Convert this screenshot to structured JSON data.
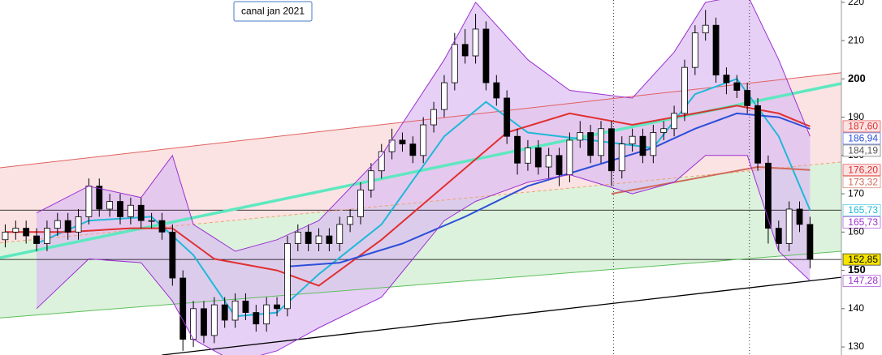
{
  "chart_data": {
    "type": "candlestick",
    "annotation": "canal jan 2021",
    "xlim": [
      -0.5,
      80
    ],
    "ylim": [
      127.9,
      220.6
    ],
    "yticks": [
      130,
      140,
      150,
      160,
      170,
      180,
      190,
      200,
      210,
      220
    ],
    "bold_ticks": [
      150,
      200
    ],
    "up_color": "#ffffff",
    "down_color": "#000000",
    "open": [
      158,
      160,
      161,
      159,
      157,
      161,
      163,
      160,
      164,
      172,
      166,
      168,
      164,
      167,
      163,
      163,
      160,
      148,
      132,
      140,
      133,
      141,
      137,
      142,
      139,
      136,
      141,
      140,
      157,
      160,
      157,
      159,
      157,
      162,
      164,
      171,
      176,
      181,
      184,
      183,
      180,
      188,
      192,
      199,
      209,
      206,
      213,
      199,
      195,
      185,
      178,
      182,
      177,
      180,
      175,
      184,
      186,
      180,
      187,
      176,
      183,
      185,
      180,
      186,
      187,
      191,
      203,
      212,
      214,
      201,
      199,
      197,
      193,
      178,
      161,
      157,
      166,
      162
    ],
    "high": [
      162,
      163,
      163,
      161,
      163,
      165,
      165,
      166,
      174,
      174,
      170,
      170,
      169,
      169,
      165,
      165,
      162,
      150,
      142,
      142,
      143,
      143,
      144,
      144,
      141,
      143,
      143,
      159,
      162,
      162,
      161,
      161,
      164,
      166,
      173,
      178,
      183,
      187,
      186,
      185,
      190,
      194,
      201,
      212,
      213,
      217,
      215,
      201,
      197,
      187,
      184,
      184,
      182,
      182,
      186,
      189,
      188,
      189,
      189,
      185,
      187,
      187,
      188,
      189,
      193,
      205,
      214,
      218,
      216,
      203,
      201,
      199,
      195,
      180,
      163,
      168,
      168,
      164
    ],
    "low": [
      156,
      158,
      157,
      155,
      155,
      159,
      158,
      158,
      162,
      164,
      164,
      162,
      162,
      161,
      161,
      158,
      146,
      129,
      130,
      131,
      131,
      135,
      135,
      137,
      134,
      134,
      138,
      138,
      155,
      155,
      155,
      155,
      155,
      160,
      162,
      169,
      174,
      179,
      181,
      178,
      178,
      186,
      190,
      197,
      204,
      204,
      197,
      193,
      183,
      175,
      176,
      175,
      174,
      172,
      173,
      182,
      178,
      178,
      172,
      174,
      181,
      178,
      178,
      184,
      185,
      189,
      201,
      210,
      199,
      196,
      195,
      191,
      176,
      157,
      155,
      155,
      160,
      150.5
    ],
    "close": [
      160,
      161,
      159,
      157,
      161,
      163,
      160,
      164,
      172,
      166,
      168,
      164,
      167,
      163,
      163,
      160,
      148,
      132,
      140,
      133,
      141,
      137,
      142,
      139,
      136,
      141,
      140,
      157,
      160,
      157,
      159,
      157,
      162,
      164,
      171,
      176,
      181,
      184,
      183,
      180,
      188,
      192,
      199,
      209,
      206,
      213,
      199,
      195,
      185,
      178,
      182,
      177,
      180,
      175,
      184,
      186,
      180,
      187,
      176,
      183,
      185,
      180,
      186,
      187,
      191,
      203,
      212,
      214,
      201,
      199,
      197,
      193,
      178,
      161,
      157,
      166,
      162,
      152.85
    ],
    "channel": {
      "x": [
        -0.5,
        80
      ],
      "upper": [
        176.8,
        201.6
      ],
      "middle": [
        157.2,
        178.3
      ],
      "lower": [
        137.6,
        155
      ],
      "upper_color": "#e06060",
      "middle_color": "#f0a070",
      "lower_color": "#5cbf5c",
      "upper_fill": "#fbe3e3",
      "lower_fill": "#dcf2dc"
    },
    "trend_lines": [
      {
        "x": [
          -0.5,
          80
        ],
        "values": [
          153.3,
          198.8
        ],
        "color": "#5ee8c0"
      },
      {
        "x": [
          15,
          80
        ],
        "values": [
          127.9,
          148.2
        ],
        "color": "#000000"
      }
    ],
    "hlines": [
      165.73,
      152.85
    ],
    "vlines": [
      58.2,
      71.2
    ],
    "bollinger": {
      "x": [
        3,
        8,
        13,
        16,
        18,
        22,
        26,
        30,
        36,
        42,
        45,
        50,
        54,
        60,
        64,
        67,
        71,
        74,
        77
      ],
      "upper": [
        165,
        172,
        169,
        180,
        162,
        155,
        158,
        163,
        180,
        205,
        220,
        205,
        197,
        195,
        207,
        220,
        222,
        205,
        185
      ],
      "lower": [
        140,
        153,
        152,
        142,
        132,
        126,
        129,
        135,
        143,
        163,
        168,
        173,
        175,
        170,
        173,
        180,
        180,
        155,
        147.28
      ],
      "color": "#9b30d0",
      "fill": "#dcbcf2"
    },
    "moving_averages": [
      {
        "x": [
          3,
          8,
          14,
          18,
          22,
          26,
          30,
          36,
          42,
          46,
          50,
          56,
          62,
          66,
          70,
          74,
          77
        ],
        "values": [
          157,
          163,
          164,
          154,
          138,
          139,
          149,
          162,
          185,
          194,
          186,
          184,
          182,
          196,
          200,
          185,
          165.73
        ],
        "color": "#20b8d8"
      },
      {
        "x": [
          0,
          6,
          12,
          16,
          20,
          26,
          30,
          36,
          42,
          48,
          54,
          60,
          66,
          70,
          74,
          77
        ],
        "values": [
          160,
          160,
          161,
          161,
          153,
          150,
          146,
          158,
          172,
          186,
          191,
          188,
          191,
          193,
          191,
          187.6
        ],
        "color": "#e03030"
      },
      {
        "x": [
          27,
          32,
          38,
          44,
          50,
          56,
          62,
          66,
          70,
          74,
          77
        ],
        "values": [
          151,
          152,
          157,
          164,
          172,
          177,
          182,
          187,
          191,
          190,
          186.94
        ],
        "color": "#2c50d8"
      },
      {
        "x": [
          58,
          66,
          72,
          77
        ],
        "values": [
          170,
          174,
          177,
          176.2
        ],
        "color": "#d06a5a"
      }
    ],
    "price_labels": [
      {
        "value": 187.6,
        "label": "187,60",
        "color": "#e03030",
        "background": "#fbe3e3"
      },
      {
        "value": 186.94,
        "label": "186,94",
        "color": "#2c50d8",
        "background": "#ffffff"
      },
      {
        "value": 184.19,
        "label": "184,19",
        "color": "#555555",
        "background": "#ffffff"
      },
      {
        "value": 176.2,
        "label": "176,20",
        "color": "#e03030",
        "background": "#fbe3e3"
      },
      {
        "value": 173.32,
        "label": "173,32",
        "color": "#d06a5a",
        "background": "#ffffff"
      },
      {
        "value": 165.73,
        "label": "165,73",
        "color": "#20b8d8",
        "background": "#ffffff"
      },
      {
        "value": 165.73,
        "label": "165,73",
        "color": "#9b30d0",
        "background": "#ffffff"
      },
      {
        "value": 152.85,
        "label": "152,85",
        "color": "#000000",
        "background": "#f5e400"
      },
      {
        "value": 147.28,
        "label": "147,28",
        "color": "#9b30d0",
        "background": "#ffffff"
      }
    ]
  }
}
